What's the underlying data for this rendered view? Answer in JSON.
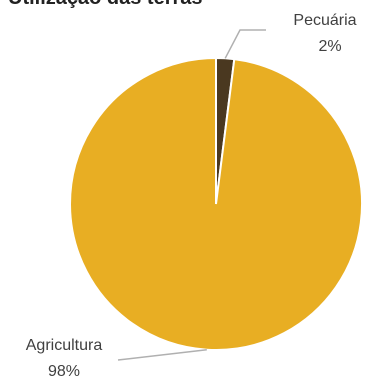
{
  "chart_data": {
    "type": "pie",
    "title": "Utilização das terras",
    "slices": [
      {
        "label": "Pecuária",
        "value": 2,
        "value_label": "2%",
        "color": "#4a3820"
      },
      {
        "label": "Agricultura",
        "value": 98,
        "value_label": "98%",
        "color": "#e8ae23"
      }
    ],
    "legend": "none"
  }
}
